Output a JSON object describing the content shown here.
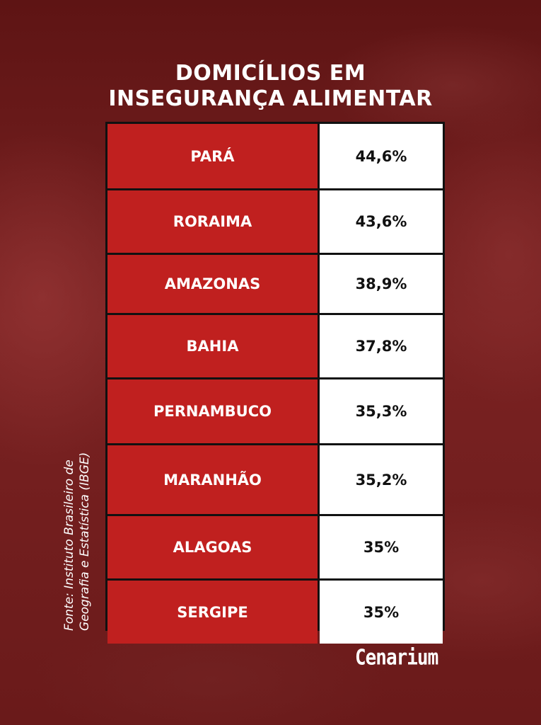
{
  "title_lines": [
    "DOMICÍLIOS EM",
    "INSEGURANÇA ALIMENTAR"
  ],
  "source_lines": [
    "Fonte: Instituto Brasileiro de",
    "Geografia e Estatística (IBGE)"
  ],
  "logo_text": "Cenarium",
  "colors": {
    "state_cell": "#c0201f",
    "value_cell": "#ffffff",
    "background": "#6e1c1c"
  },
  "chart_data": {
    "type": "table",
    "rows": [
      {
        "state": "PARÁ",
        "value_label": "44,6%",
        "value": 44.6
      },
      {
        "state": "RORAIMA",
        "value_label": "43,6%",
        "value": 43.6
      },
      {
        "state": "AMAZONAS",
        "value_label": "38,9%",
        "value": 38.9
      },
      {
        "state": "BAHIA",
        "value_label": "37,8%",
        "value": 37.8
      },
      {
        "state": "PERNAMBUCO",
        "value_label": "35,3%",
        "value": 35.3
      },
      {
        "state": "MARANHÃO",
        "value_label": "35,2%",
        "value": 35.2
      },
      {
        "state": "ALAGOAS",
        "value_label": "35%",
        "value": 35
      },
      {
        "state": "SERGIPE",
        "value_label": "35%",
        "value": 35
      }
    ]
  }
}
